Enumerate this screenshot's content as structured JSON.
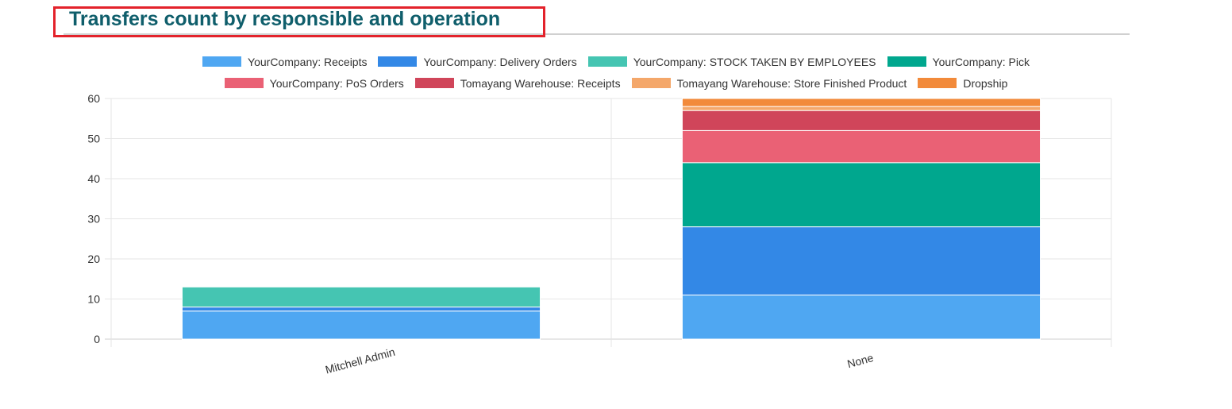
{
  "header": {
    "title": "Transfers count by responsible and operation"
  },
  "chart_data": {
    "type": "bar",
    "stacked": true,
    "title": "Transfers count by responsible and operation",
    "xlabel": "",
    "ylabel": "",
    "ylim": [
      0,
      60
    ],
    "yticks": [
      0,
      10,
      20,
      30,
      40,
      50,
      60
    ],
    "grid": true,
    "legend_position": "top",
    "categories": [
      "Mitchell Admin",
      "None"
    ],
    "series": [
      {
        "name": "YourCompany: Receipts",
        "color": "#4fa7f2",
        "values": [
          7,
          11
        ]
      },
      {
        "name": "YourCompany: Delivery Orders",
        "color": "#3388e6",
        "values": [
          1,
          17
        ]
      },
      {
        "name": "YourCompany: STOCK TAKEN BY EMPLOYEES",
        "color": "#45c5b2",
        "values": [
          5,
          0
        ]
      },
      {
        "name": "YourCompany: Pick",
        "color": "#00a78e",
        "values": [
          0,
          16
        ]
      },
      {
        "name": "YourCompany: PoS Orders",
        "color": "#ea6175",
        "values": [
          0,
          8
        ]
      },
      {
        "name": "Tomayang Warehouse: Receipts",
        "color": "#d0455a",
        "values": [
          0,
          5
        ]
      },
      {
        "name": "Tomayang Warehouse: Store Finished Product",
        "color": "#f4a76a",
        "values": [
          0,
          1
        ]
      },
      {
        "name": "Dropship",
        "color": "#f28a3a",
        "values": [
          0,
          2
        ]
      }
    ]
  }
}
